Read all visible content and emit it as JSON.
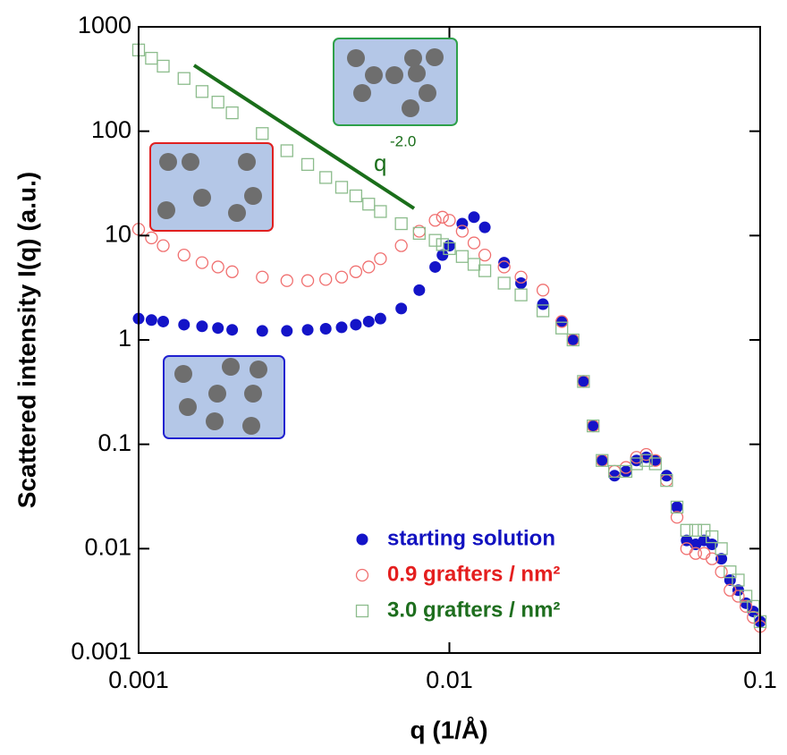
{
  "chart_data": {
    "type": "scatter",
    "xlabel": "q (1/Å)",
    "ylabel": "Scattered intensity I(q) (a.u.)",
    "xscale": "log",
    "yscale": "log",
    "xlim": [
      0.001,
      0.1
    ],
    "ylim": [
      0.001,
      1000
    ],
    "xticks": [
      0.001,
      0.01,
      0.1
    ],
    "yticks": [
      0.001,
      0.01,
      0.1,
      1,
      10,
      100,
      1000
    ],
    "grid": false,
    "legend": "lower right",
    "slope_label": "q",
    "slope_exponent": "-2.0",
    "slope_color": "#1a6e1a",
    "x": [
      0.001,
      0.0011,
      0.0012,
      0.0014,
      0.0016,
      0.0018,
      0.002,
      0.0025,
      0.003,
      0.0035,
      0.004,
      0.0045,
      0.005,
      0.0055,
      0.006,
      0.007,
      0.008,
      0.009,
      0.0095,
      0.01,
      0.011,
      0.012,
      0.013,
      0.015,
      0.017,
      0.02,
      0.023,
      0.025,
      0.027,
      0.029,
      0.031,
      0.034,
      0.037,
      0.04,
      0.043,
      0.046,
      0.05,
      0.054,
      0.058,
      0.062,
      0.066,
      0.07,
      0.075,
      0.08,
      0.085,
      0.09,
      0.095,
      0.1
    ],
    "series": [
      {
        "name": "starting solution",
        "marker": "filled-circle",
        "color": "#1414c8",
        "label_color": "#1212c0",
        "values": [
          1.6,
          1.55,
          1.5,
          1.4,
          1.35,
          1.3,
          1.25,
          1.22,
          1.22,
          1.25,
          1.28,
          1.32,
          1.4,
          1.5,
          1.6,
          2.0,
          3.0,
          5.0,
          6.5,
          8,
          13,
          15,
          12,
          5.5,
          3.5,
          2.2,
          1.5,
          1.0,
          0.4,
          0.15,
          0.07,
          0.05,
          0.055,
          0.07,
          0.075,
          0.07,
          0.05,
          0.025,
          0.012,
          0.011,
          0.012,
          0.011,
          0.008,
          0.005,
          0.004,
          0.003,
          0.0025,
          0.002
        ]
      },
      {
        "name": "0.9 grafters / nm²",
        "marker": "open-circle",
        "color": "#f07070",
        "label_color": "#e41e1e",
        "values": [
          11.5,
          9.5,
          8,
          6.5,
          5.5,
          5,
          4.5,
          4,
          3.7,
          3.7,
          3.8,
          4,
          4.5,
          5,
          6,
          8,
          11,
          14,
          15,
          14,
          11,
          8.5,
          6.5,
          5,
          4,
          3,
          1.5,
          1.0,
          0.4,
          0.15,
          0.07,
          0.055,
          0.06,
          0.075,
          0.08,
          0.07,
          0.045,
          0.02,
          0.01,
          0.009,
          0.009,
          0.008,
          0.006,
          0.004,
          0.0035,
          0.0028,
          0.0022,
          0.0018
        ]
      },
      {
        "name": "3.0 grafters / nm²",
        "marker": "open-square",
        "color": "#8cbc8c",
        "label_color": "#1e6e1e",
        "values": [
          600,
          500,
          420,
          320,
          240,
          190,
          150,
          95,
          65,
          48,
          36,
          29,
          24,
          20,
          17,
          13,
          10.5,
          9,
          8.2,
          7.5,
          6.3,
          5.3,
          4.6,
          3.5,
          2.7,
          1.9,
          1.3,
          1.0,
          0.4,
          0.15,
          0.07,
          0.055,
          0.055,
          0.065,
          0.07,
          0.065,
          0.045,
          0.025,
          0.015,
          0.015,
          0.015,
          0.013,
          0.01,
          0.006,
          0.005,
          0.0035,
          0.0028,
          0.002
        ]
      }
    ]
  }
}
